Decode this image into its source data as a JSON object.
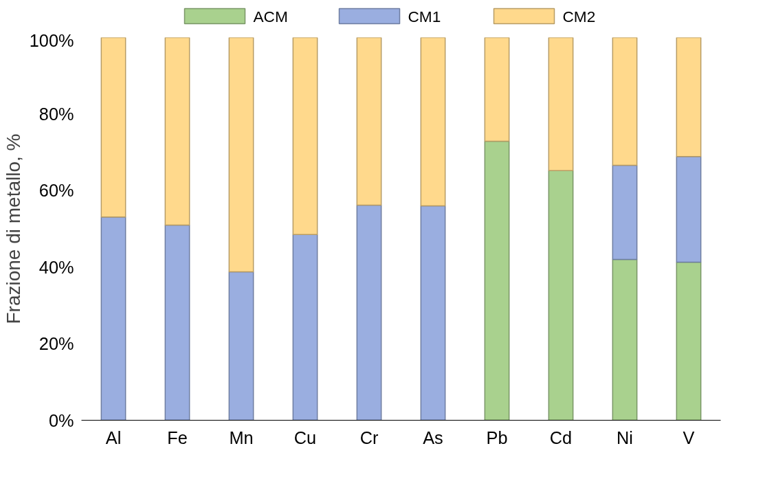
{
  "chart_data": {
    "type": "bar",
    "stacked": true,
    "ylabel": "Frazione di metallo, %",
    "categories": [
      "Al",
      "Fe",
      "Mn",
      "Cu",
      "Cr",
      "As",
      "Pb",
      "Cd",
      "Ni",
      "V"
    ],
    "series": [
      {
        "name": "ACM",
        "color": "#a9d18e",
        "values": [
          null,
          null,
          null,
          null,
          null,
          null,
          72.9,
          65.2,
          42.0,
          41.3
        ]
      },
      {
        "name": "CM1",
        "color": "#9aaee0",
        "values": [
          53.1,
          51.0,
          38.8,
          48.5,
          56.2,
          56.0,
          null,
          null,
          24.6,
          27.6
        ]
      },
      {
        "name": "CM2",
        "color": "#ffd98c",
        "values": [
          46.9,
          49.0,
          61.2,
          51.5,
          43.8,
          44.0,
          27.1,
          34.8,
          33.4,
          31.1
        ]
      }
    ],
    "ylim": [
      0,
      100
    ],
    "yticks": [
      {
        "value": 0,
        "label": "0%"
      },
      {
        "value": 20,
        "label": "20%"
      },
      {
        "value": 40,
        "label": "40%"
      },
      {
        "value": 60,
        "label": "60%"
      },
      {
        "value": 80,
        "label": "80%"
      },
      {
        "value": 100,
        "label": "100%"
      }
    ],
    "grid": false,
    "legend": "top"
  }
}
